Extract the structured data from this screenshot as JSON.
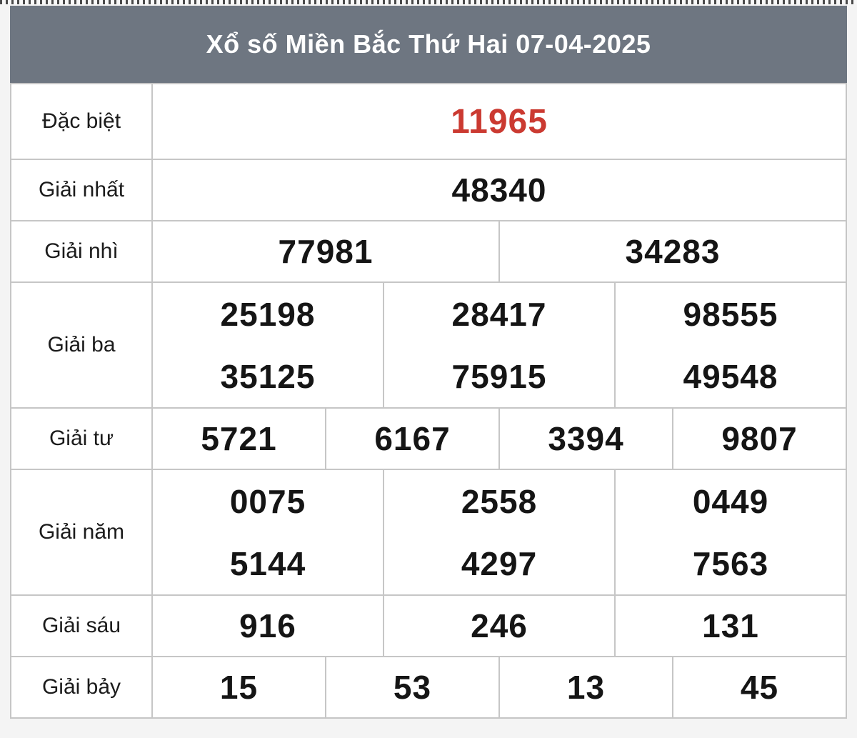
{
  "title": "Xổ số Miền Bắc Thứ Hai 07-04-2025",
  "colors": {
    "header_bg": "#6e7681",
    "header_text": "#ffffff",
    "special_number": "#cb3a31",
    "number_text": "#151515",
    "border": "#c6c6c6",
    "cell_bg": "#ffffff",
    "page_bg": "#f4f4f4"
  },
  "table": {
    "rows": [
      {
        "label": "Đặc biệt",
        "cols": 1,
        "special": true,
        "numbers": [
          "11965"
        ]
      },
      {
        "label": "Giải nhất",
        "cols": 1,
        "special": false,
        "numbers": [
          "48340"
        ]
      },
      {
        "label": "Giải nhì",
        "cols": 2,
        "special": false,
        "numbers": [
          "77981",
          "34283"
        ]
      },
      {
        "label": "Giải ba",
        "cols": 3,
        "special": false,
        "numbers": [
          "25198",
          "28417",
          "98555",
          "35125",
          "75915",
          "49548"
        ]
      },
      {
        "label": "Giải tư",
        "cols": 4,
        "special": false,
        "numbers": [
          "5721",
          "6167",
          "3394",
          "9807"
        ]
      },
      {
        "label": "Giải năm",
        "cols": 3,
        "special": false,
        "numbers": [
          "0075",
          "2558",
          "0449",
          "5144",
          "4297",
          "7563"
        ]
      },
      {
        "label": "Giải sáu",
        "cols": 3,
        "special": false,
        "numbers": [
          "916",
          "246",
          "131"
        ]
      },
      {
        "label": "Giải bảy",
        "cols": 4,
        "special": false,
        "numbers": [
          "15",
          "53",
          "13",
          "45"
        ]
      }
    ]
  }
}
